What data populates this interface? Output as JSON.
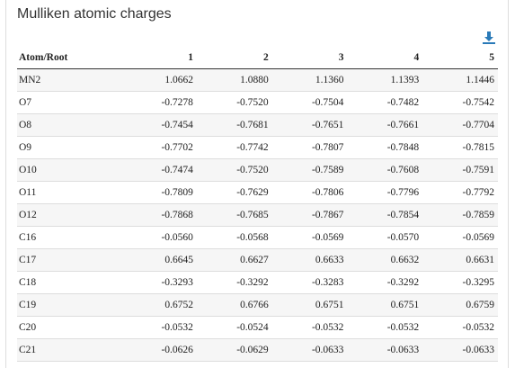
{
  "panel": {
    "title": "Mulliken atomic charges",
    "download_icon": "download-icon"
  },
  "table": {
    "headers": [
      "Atom/Root",
      "1",
      "2",
      "3",
      "4",
      "5"
    ],
    "rows": [
      [
        "MN2",
        "1.0662",
        "1.0880",
        "1.1360",
        "1.1393",
        "1.1446"
      ],
      [
        "O7",
        "-0.7278",
        "-0.7520",
        "-0.7504",
        "-0.7482",
        "-0.7542"
      ],
      [
        "O8",
        "-0.7454",
        "-0.7681",
        "-0.7651",
        "-0.7661",
        "-0.7704"
      ],
      [
        "O9",
        "-0.7702",
        "-0.7742",
        "-0.7807",
        "-0.7848",
        "-0.7815"
      ],
      [
        "O10",
        "-0.7474",
        "-0.7520",
        "-0.7589",
        "-0.7608",
        "-0.7591"
      ],
      [
        "O11",
        "-0.7809",
        "-0.7629",
        "-0.7806",
        "-0.7796",
        "-0.7792"
      ],
      [
        "O12",
        "-0.7868",
        "-0.7685",
        "-0.7867",
        "-0.7854",
        "-0.7859"
      ],
      [
        "C16",
        "-0.0560",
        "-0.0568",
        "-0.0569",
        "-0.0570",
        "-0.0569"
      ],
      [
        "C17",
        "0.6645",
        "0.6627",
        "0.6633",
        "0.6632",
        "0.6631"
      ],
      [
        "C18",
        "-0.3293",
        "-0.3292",
        "-0.3283",
        "-0.3292",
        "-0.3295"
      ],
      [
        "C19",
        "0.6752",
        "0.6766",
        "0.6751",
        "0.6751",
        "0.6759"
      ],
      [
        "C20",
        "-0.0532",
        "-0.0524",
        "-0.0532",
        "-0.0532",
        "-0.0532"
      ],
      [
        "C21",
        "-0.0626",
        "-0.0629",
        "-0.0633",
        "-0.0633",
        "-0.0633"
      ]
    ]
  },
  "colors": {
    "accent": "#2a7ab8",
    "row_stripe": "#f6f6f6",
    "border": "#dddddd"
  }
}
